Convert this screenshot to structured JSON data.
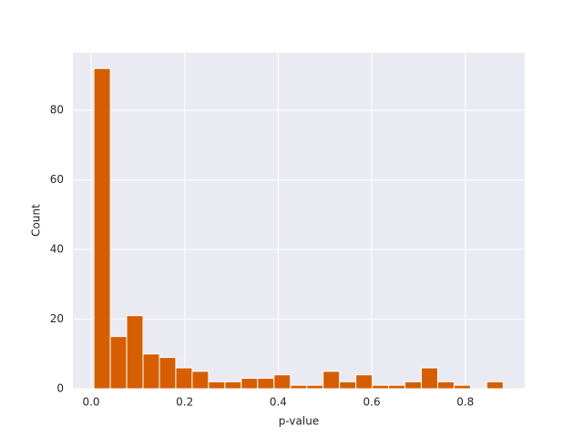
{
  "chart_data": {
    "type": "histogram",
    "xlabel": "p-value",
    "ylabel": "Count",
    "bins": [
      0.006,
      0.041,
      0.076,
      0.111,
      0.146,
      0.181,
      0.216,
      0.251,
      0.286,
      0.321,
      0.356,
      0.391,
      0.426,
      0.461,
      0.496,
      0.531,
      0.566,
      0.601,
      0.636,
      0.671,
      0.706,
      0.741,
      0.776,
      0.811,
      0.846,
      0.881
    ],
    "values": [
      92,
      15,
      21,
      10,
      9,
      6,
      5,
      2,
      2,
      3,
      3,
      4,
      1,
      1,
      5,
      2,
      4,
      1,
      1,
      2,
      6,
      2,
      1,
      0,
      2
    ],
    "color": "#d55e00",
    "xlim": [
      -0.039,
      0.927
    ],
    "ylim": [
      0,
      96.5
    ],
    "xticks": [
      {
        "value": 0,
        "label": "0.0"
      },
      0.2,
      0.4,
      0.6,
      0.8
    ],
    "yticks": [
      0,
      20,
      40,
      60,
      80
    ],
    "grid": true
  }
}
